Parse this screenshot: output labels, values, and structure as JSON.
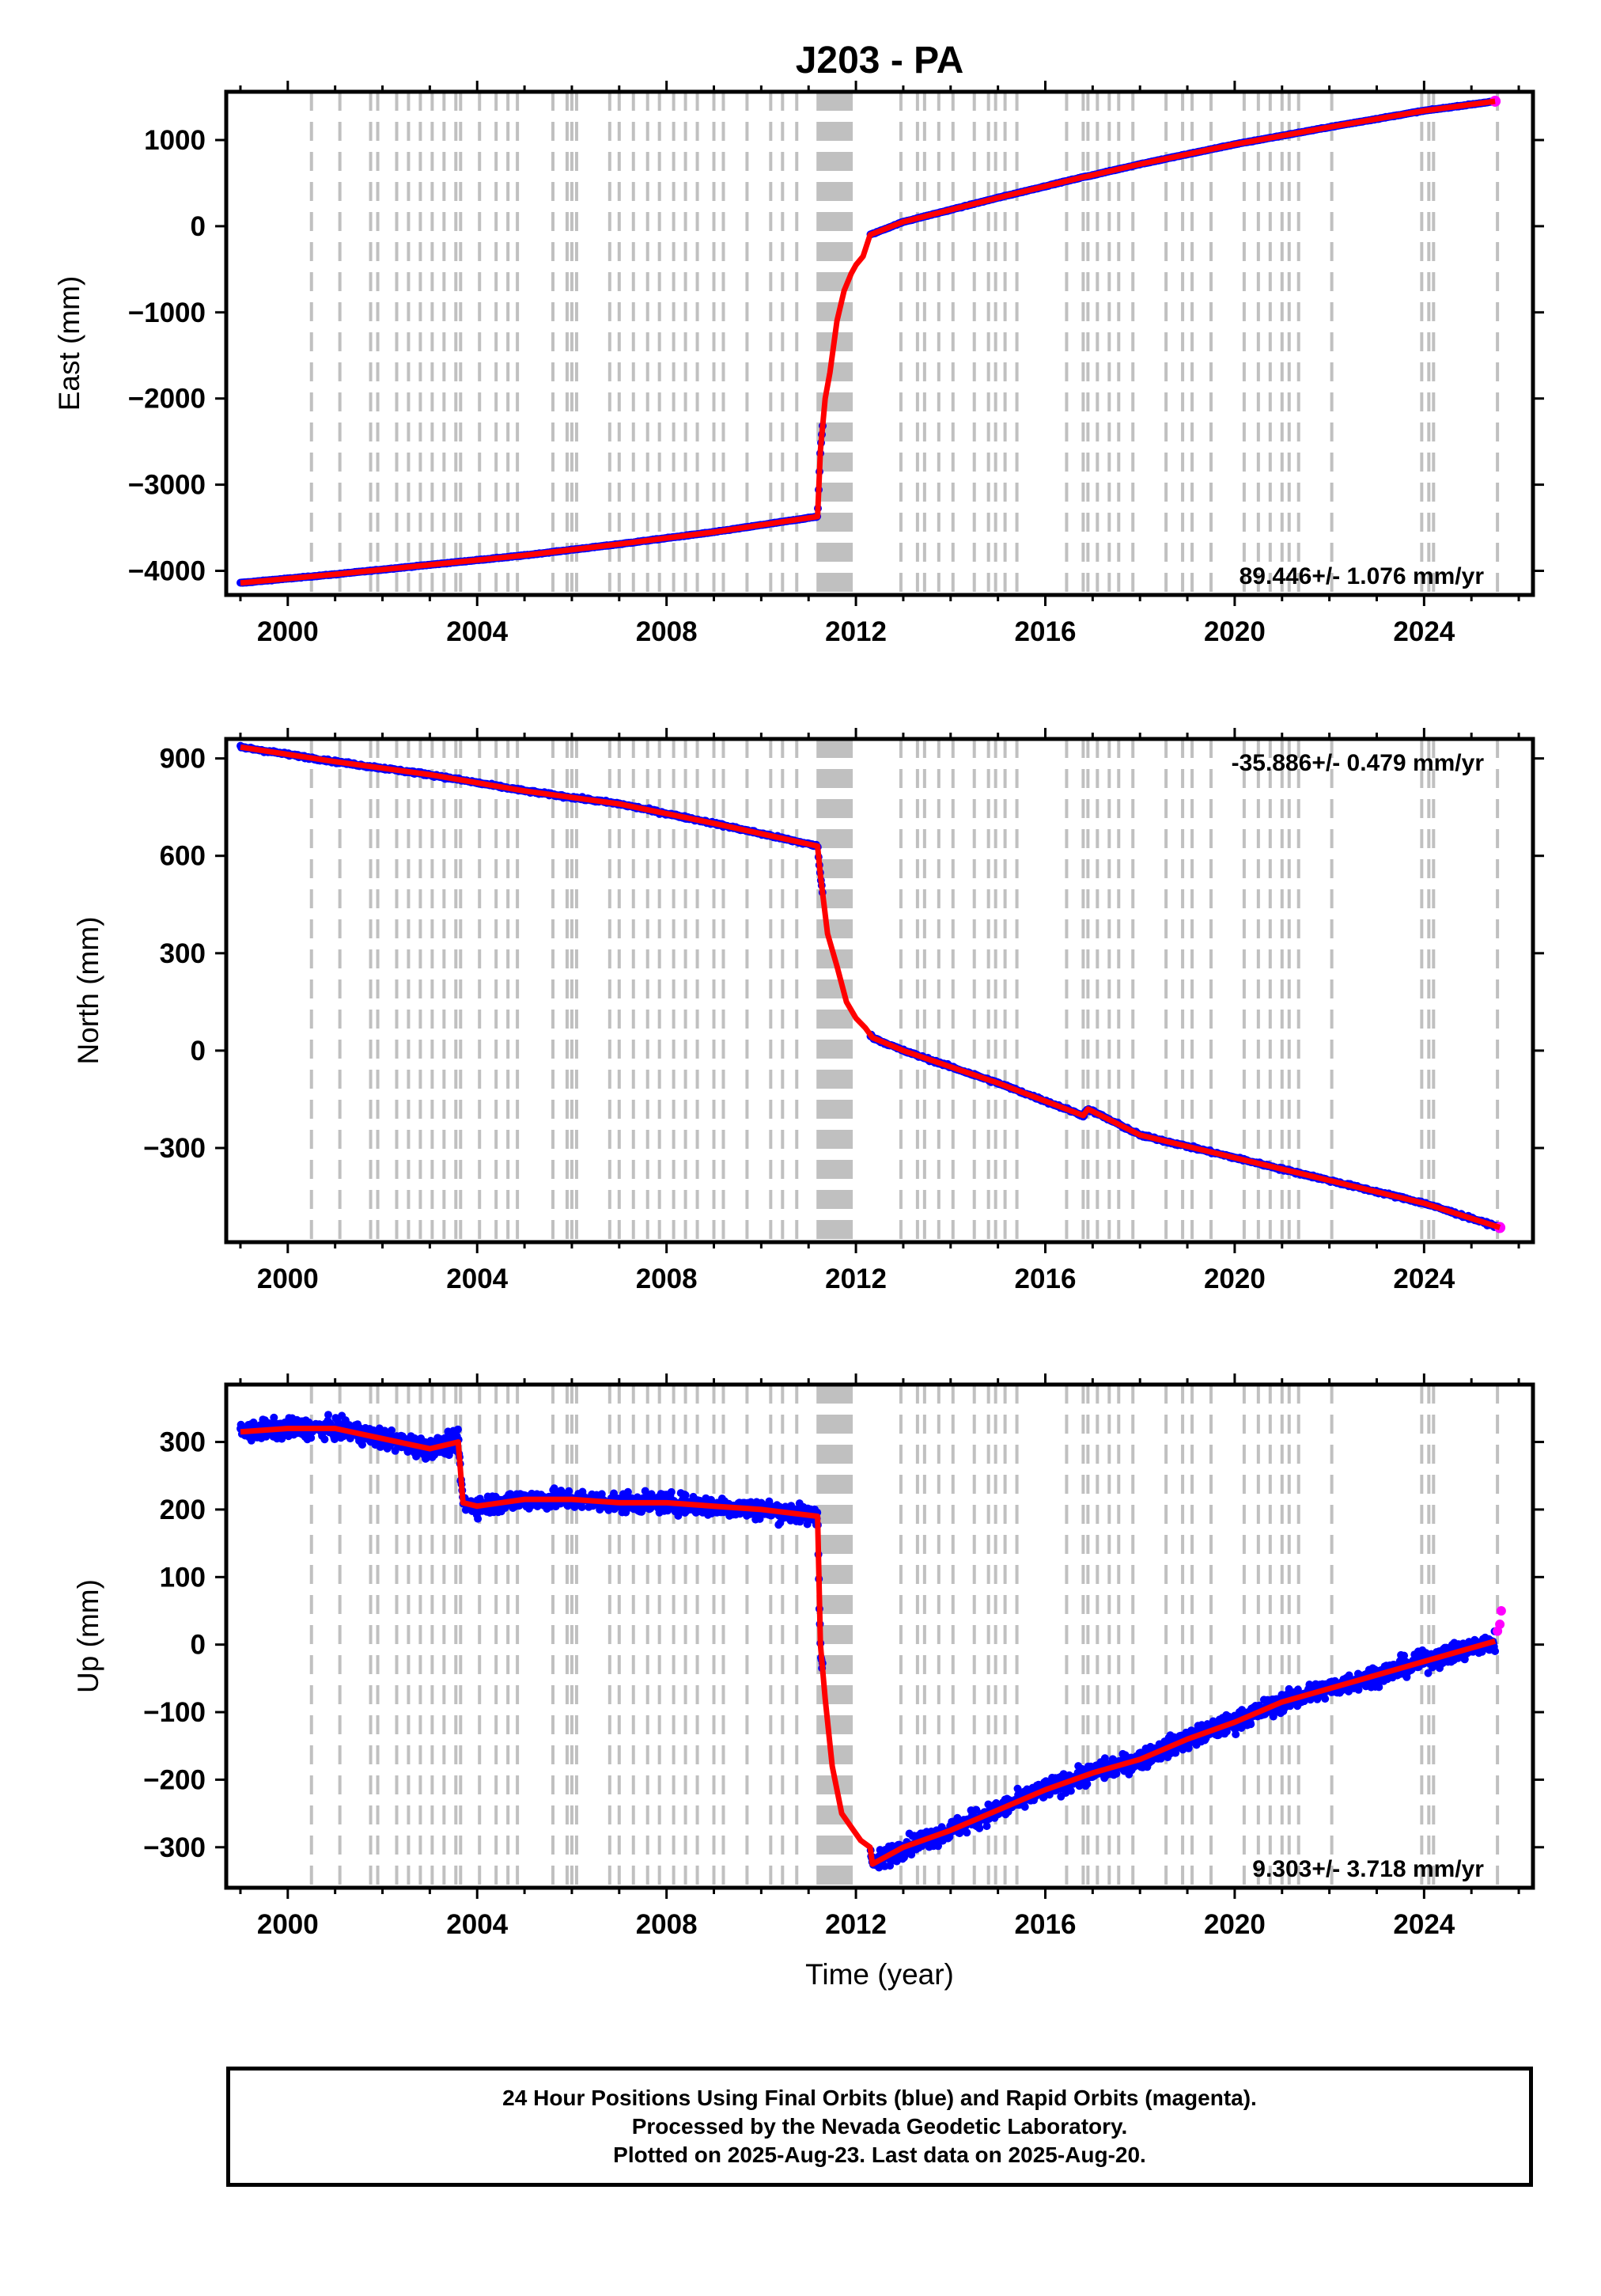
{
  "title": "J203 - PA",
  "footer": {
    "line1": "24 Hour Positions Using Final Orbits (blue) and Rapid Orbits (magenta).",
    "line2": "Processed by the Nevada Geodetic Laboratory.",
    "line3": "Plotted on 2025-Aug-23. Last data on 2025-Aug-20."
  },
  "colors": {
    "final_orbits": "#0000ff",
    "rapid_orbits": "#ff00ff",
    "model": "#ff0000",
    "equipment_change_lines": "#c0c0c0"
  },
  "chart_data": [
    {
      "type": "scatter",
      "panel": "east",
      "ylabel": "East (mm)",
      "xlabel": "",
      "xlim": [
        1998.7,
        2026.3
      ],
      "ylim": [
        -4280,
        1560
      ],
      "xticks": [
        "2000",
        "2004",
        "2008",
        "2012",
        "2016",
        "2020",
        "2024"
      ],
      "yticks": [
        "1000",
        "0",
        "−1000",
        "−2000",
        "−3000",
        "−4000"
      ],
      "ytick_values": [
        1000,
        0,
        -1000,
        -2000,
        -3000,
        -4000
      ],
      "rate_label": "89.446+/- 1.076 mm/yr",
      "rate_label_position": "bottom-right",
      "series": [
        {
          "name": "final",
          "x": [
            1999.0,
            2001.0,
            2003.0,
            2005.0,
            2007.0,
            2009.0,
            2011.19,
            2011.25,
            2011.35,
            2011.45,
            2011.6,
            2011.75,
            2011.9,
            2012.0,
            2012.15,
            2012.3,
            2013.0,
            2015.0,
            2016.8,
            2016.9,
            2018.0,
            2020.0,
            2022.0,
            2024.0,
            2025.5
          ],
          "y": [
            -4140,
            -4040,
            -3930,
            -3820,
            -3690,
            -3550,
            -3370,
            -2600,
            -2000,
            -1700,
            -1100,
            -750,
            -550,
            -450,
            -350,
            -100,
            50,
            330,
            570,
            580,
            720,
            950,
            1150,
            1340,
            1450
          ]
        }
      ]
    },
    {
      "type": "scatter",
      "panel": "north",
      "ylabel": "North (mm)",
      "xlabel": "",
      "xlim": [
        1998.7,
        2026.3
      ],
      "ylim": [
        -590,
        960
      ],
      "xticks": [
        "2000",
        "2004",
        "2008",
        "2012",
        "2016",
        "2020",
        "2024"
      ],
      "yticks": [
        "900",
        "600",
        "300",
        "0",
        "−300"
      ],
      "ytick_values": [
        900,
        600,
        300,
        0,
        -300
      ],
      "rate_label": "-35.886+/- 0.479 mm/yr",
      "rate_label_position": "top-right",
      "series": [
        {
          "name": "final",
          "x": [
            1999.0,
            2001.0,
            2003.0,
            2005.0,
            2007.0,
            2009.0,
            2011.19,
            2011.25,
            2011.4,
            2011.6,
            2011.8,
            2012.0,
            2012.2,
            2012.35,
            2013.0,
            2015.0,
            2016.8,
            2016.9,
            2018.0,
            2020.0,
            2022.0,
            2024.0,
            2025.6
          ],
          "y": [
            935,
            890,
            850,
            800,
            760,
            700,
            630,
            540,
            360,
            260,
            150,
            100,
            70,
            40,
            0,
            -100,
            -200,
            -180,
            -260,
            -330,
            -400,
            -470,
            -545
          ]
        }
      ]
    },
    {
      "type": "scatter",
      "panel": "up",
      "ylabel": "Up (mm)",
      "xlabel": "Time (year)",
      "xlim": [
        1998.7,
        2026.3
      ],
      "ylim": [
        -360,
        385
      ],
      "xticks": [
        "2000",
        "2004",
        "2008",
        "2012",
        "2016",
        "2020",
        "2024"
      ],
      "yticks": [
        "300",
        "200",
        "100",
        "0",
        "−100",
        "−200",
        "−300"
      ],
      "ytick_values": [
        300,
        200,
        100,
        0,
        -100,
        -200,
        -300
      ],
      "rate_label": "9.303+/- 3.718 mm/yr",
      "rate_label_position": "bottom-right",
      "series": [
        {
          "name": "final",
          "x": [
            1999.0,
            2000.0,
            2001.0,
            2002.0,
            2003.0,
            2003.6,
            2003.7,
            2004.0,
            2005.0,
            2006.0,
            2007.0,
            2008.0,
            2009.0,
            2010.0,
            2011.19,
            2011.25,
            2011.35,
            2011.5,
            2011.7,
            2011.9,
            2012.1,
            2012.3,
            2012.35,
            2013.0,
            2014.0,
            2015.0,
            2016.0,
            2017.0,
            2018.0,
            2019.0,
            2020.0,
            2021.0,
            2022.0,
            2023.0,
            2024.0,
            2025.0,
            2025.5
          ],
          "y": [
            315,
            320,
            320,
            305,
            290,
            300,
            210,
            205,
            215,
            215,
            210,
            210,
            205,
            200,
            190,
            0,
            -80,
            -180,
            -250,
            -270,
            -290,
            -300,
            -325,
            -300,
            -275,
            -245,
            -215,
            -190,
            -170,
            -140,
            -115,
            -85,
            -65,
            -45,
            -25,
            -5,
            5
          ]
        },
        {
          "name": "rapid",
          "x": [
            2025.55,
            2025.6,
            2025.63
          ],
          "y": [
            20,
            30,
            50
          ]
        }
      ]
    }
  ],
  "equipment_change_lines": [
    2000.5,
    2001.1,
    2001.75,
    2001.9,
    2002.3,
    2002.55,
    2002.8,
    2003.05,
    2003.3,
    2003.55,
    2003.65,
    2004.05,
    2004.4,
    2004.65,
    2004.85,
    2005.6,
    2005.9,
    2006.0,
    2006.1,
    2006.8,
    2007.0,
    2007.3,
    2007.6,
    2007.85,
    2008.15,
    2008.4,
    2008.65,
    2009.0,
    2009.2,
    2009.7,
    2010.2,
    2010.45,
    2010.75,
    2011.2,
    2011.25,
    2011.3,
    2011.35,
    2011.4,
    2011.45,
    2011.5,
    2011.55,
    2011.6,
    2011.65,
    2011.7,
    2011.75,
    2011.8,
    2011.85,
    2011.9,
    2012.95,
    2013.3,
    2013.45,
    2013.75,
    2014.05,
    2014.5,
    2014.8,
    2014.95,
    2015.15,
    2015.4,
    2016.45,
    2016.8,
    2016.9,
    2017.1,
    2017.35,
    2017.55,
    2017.85,
    2018.55,
    2018.9,
    2019.1,
    2019.5,
    2020.2,
    2020.5,
    2020.75,
    2021.0,
    2021.15,
    2021.35,
    2022.05,
    2023.95,
    2024.1,
    2024.2,
    2025.55
  ]
}
